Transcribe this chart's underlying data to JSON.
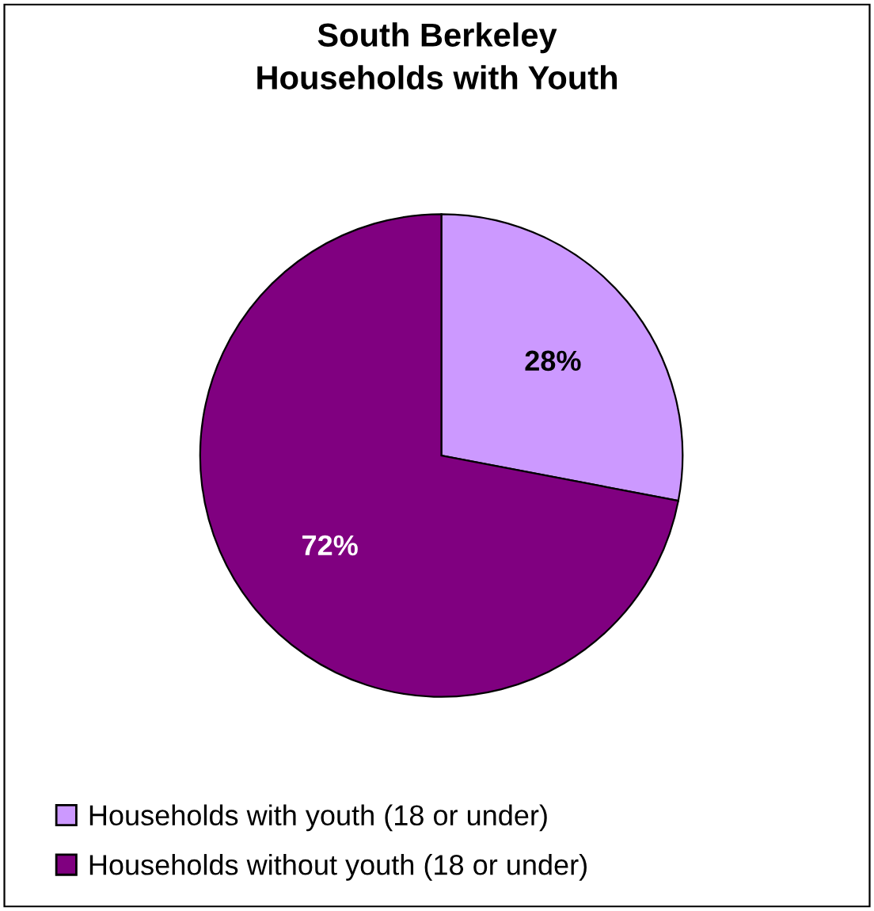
{
  "chart_data": {
    "type": "pie",
    "title": "South Berkeley\nHouseholds with Youth",
    "categories": [
      "Households with youth (18 or under)",
      "Households without youth (18 or under)"
    ],
    "values": [
      28,
      72
    ],
    "value_labels": [
      "28%",
      "72%"
    ],
    "colors": [
      "#cc99ff",
      "#800080"
    ],
    "legend": "bottom"
  }
}
